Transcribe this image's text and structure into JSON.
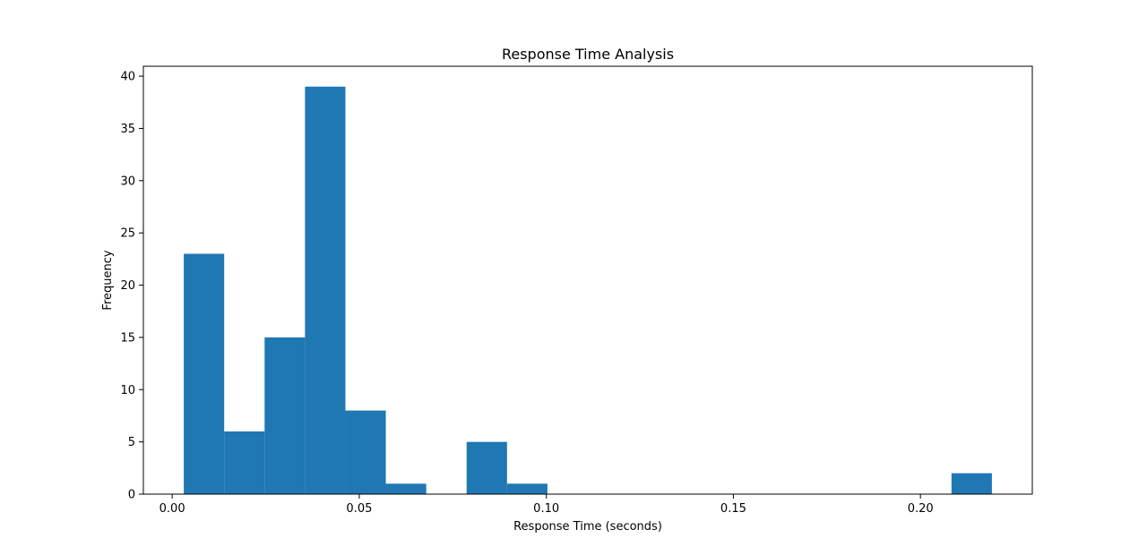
{
  "chart_data": {
    "type": "bar",
    "title": "Response Time Analysis",
    "xlabel": "Response Time (seconds)",
    "ylabel": "Frequency",
    "bars": [
      {
        "x0": 0.0031,
        "x1": 0.0139,
        "value": 23
      },
      {
        "x0": 0.0139,
        "x1": 0.0247,
        "value": 6
      },
      {
        "x0": 0.0247,
        "x1": 0.0355,
        "value": 15
      },
      {
        "x0": 0.0355,
        "x1": 0.0463,
        "value": 39
      },
      {
        "x0": 0.0463,
        "x1": 0.0571,
        "value": 8
      },
      {
        "x0": 0.0571,
        "x1": 0.0679,
        "value": 1
      },
      {
        "x0": 0.0679,
        "x1": 0.0787,
        "value": 0
      },
      {
        "x0": 0.0787,
        "x1": 0.0895,
        "value": 5
      },
      {
        "x0": 0.0895,
        "x1": 0.1003,
        "value": 1
      },
      {
        "x0": 0.1003,
        "x1": 0.1111,
        "value": 0
      },
      {
        "x0": 0.1111,
        "x1": 0.1219,
        "value": 0
      },
      {
        "x0": 0.1219,
        "x1": 0.1327,
        "value": 0
      },
      {
        "x0": 0.1327,
        "x1": 0.1435,
        "value": 0
      },
      {
        "x0": 0.1435,
        "x1": 0.1543,
        "value": 0
      },
      {
        "x0": 0.1543,
        "x1": 0.1651,
        "value": 0
      },
      {
        "x0": 0.1651,
        "x1": 0.1759,
        "value": 0
      },
      {
        "x0": 0.1759,
        "x1": 0.1867,
        "value": 0
      },
      {
        "x0": 0.1867,
        "x1": 0.1975,
        "value": 0
      },
      {
        "x0": 0.1975,
        "x1": 0.2083,
        "value": 0
      },
      {
        "x0": 0.2083,
        "x1": 0.2191,
        "value": 2
      }
    ],
    "xlim": [
      -0.0077,
      0.2299
    ],
    "ylim": [
      0,
      40.95
    ],
    "xticks": [
      0.0,
      0.05,
      0.1,
      0.15,
      0.2
    ],
    "xtick_labels": [
      "0.00",
      "0.05",
      "0.10",
      "0.15",
      "0.20"
    ],
    "yticks": [
      0,
      5,
      10,
      15,
      20,
      25,
      30,
      35,
      40
    ],
    "ytick_labels": [
      "0",
      "5",
      "10",
      "15",
      "20",
      "25",
      "30",
      "35",
      "40"
    ],
    "bar_color": "#1f77b4",
    "grid": false,
    "legend": "none"
  }
}
